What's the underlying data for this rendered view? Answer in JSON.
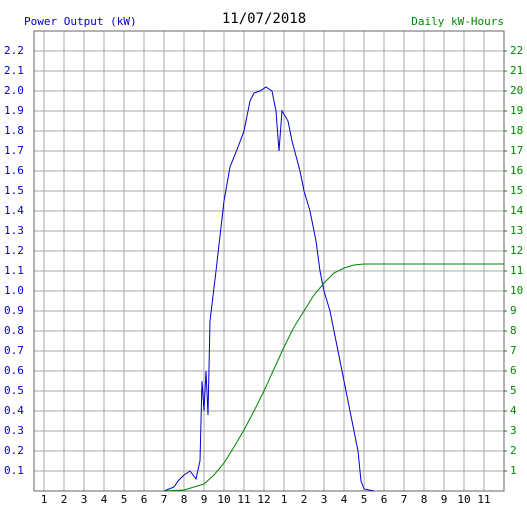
{
  "chart_data": {
    "type": "line",
    "title": "11/07/2018",
    "y_label": "Power Output (kW)",
    "y2_label": "Daily kW-Hours",
    "xlim": [
      0.5,
      24
    ],
    "xticks": [
      1,
      2,
      3,
      4,
      5,
      6,
      7,
      8,
      9,
      10,
      11,
      12,
      {
        "value": 13,
        "label": "1"
      },
      {
        "value": 14,
        "label": "2"
      },
      {
        "value": 15,
        "label": "3"
      },
      {
        "value": 16,
        "label": "4"
      },
      {
        "value": 17,
        "label": "5"
      },
      {
        "value": 18,
        "label": "6"
      },
      {
        "value": 19,
        "label": "7"
      },
      {
        "value": 20,
        "label": "8"
      },
      {
        "value": 21,
        "label": "9"
      },
      {
        "value": 22,
        "label": "10"
      },
      {
        "value": 23,
        "label": "11"
      }
    ],
    "ylim": [
      0,
      2.3
    ],
    "yticks": [
      0.1,
      0.2,
      0.3,
      0.4,
      0.5,
      0.6,
      0.7,
      0.8,
      0.9,
      {
        "value": 1,
        "label": "1.0"
      },
      1.1,
      1.2,
      1.3,
      1.4,
      1.5,
      1.6,
      1.7,
      1.8,
      1.9,
      {
        "value": 2,
        "label": "2.0"
      },
      2.1,
      2.2
    ],
    "y2lim": [
      0,
      23
    ],
    "y2ticks": [
      1,
      2,
      3,
      4,
      5,
      6,
      7,
      8,
      9,
      10,
      11,
      12,
      13,
      14,
      15,
      16,
      17,
      18,
      19,
      20,
      21,
      22
    ],
    "grid": true,
    "series": [
      {
        "name": "Power Output (kW)",
        "color": "#0000cc",
        "x": [
          7,
          7.5,
          7.7,
          8,
          8.3,
          8.6,
          8.8,
          8.9,
          9,
          9.1,
          9.2,
          9.3,
          9.6,
          10,
          10.3,
          10.7,
          11,
          11.3,
          11.5,
          11.8,
          12.1,
          12.4,
          12.6,
          12.75,
          12.9,
          13.2,
          13.4,
          13.8,
          14,
          14.3,
          14.6,
          14.8,
          15,
          15.3,
          15.6,
          16,
          16.4,
          16.7,
          16.85,
          17,
          17.5
        ],
        "values": [
          0,
          0.02,
          0.05,
          0.08,
          0.1,
          0.06,
          0.15,
          0.55,
          0.4,
          0.6,
          0.38,
          0.85,
          1.1,
          1.45,
          1.62,
          1.72,
          1.8,
          1.95,
          1.99,
          2.0,
          2.02,
          2.0,
          1.9,
          1.7,
          1.9,
          1.85,
          1.75,
          1.6,
          1.5,
          1.4,
          1.25,
          1.1,
          1.0,
          0.9,
          0.75,
          0.55,
          0.35,
          0.2,
          0.05,
          0.01,
          0
        ]
      },
      {
        "name": "Daily kW-Hours",
        "color": "#008800",
        "axis": "y2",
        "x": [
          7,
          8,
          9,
          9.5,
          10,
          10.5,
          11,
          11.5,
          12,
          12.5,
          13,
          13.5,
          14,
          14.5,
          15,
          15.5,
          16,
          16.5,
          17,
          18,
          24
        ],
        "values": [
          0,
          0.05,
          0.35,
          0.8,
          1.4,
          2.2,
          3.05,
          4.0,
          5.0,
          6.1,
          7.2,
          8.2,
          9.0,
          9.8,
          10.4,
          10.9,
          11.15,
          11.3,
          11.35,
          11.35,
          11.35
        ]
      }
    ]
  }
}
